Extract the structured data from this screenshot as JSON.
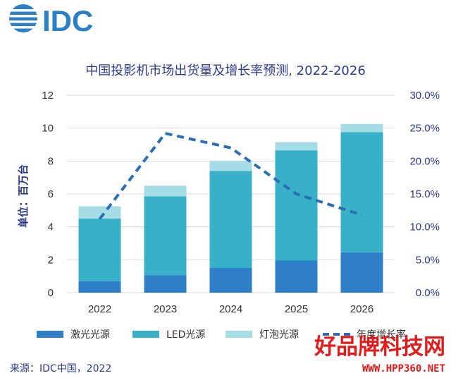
{
  "logo": {
    "text": "IDC"
  },
  "source": "来源：IDC中国，2022",
  "watermark": {
    "text": "好品牌科技网",
    "url": "WWW.HPP360.NET"
  },
  "colors": {
    "laser": "#2e7fc7",
    "led": "#38b1c8",
    "bulb": "#a6dce6",
    "growth": "#2a6fb5",
    "title": "#2b3a8f",
    "axis_text": "#333333",
    "right_axis_text": "#2b3a8f",
    "grid": "#d9d9d9",
    "watermark": "#e21a1a"
  },
  "chart_data": {
    "type": "bar",
    "stacked": true,
    "title": "中国投影机市场出货量及增长率预测, 2022-2026",
    "ylabel": "单位：百万台",
    "categories": [
      "2022",
      "2023",
      "2024",
      "2025",
      "2026"
    ],
    "ylim": [
      0,
      12
    ],
    "yticks": [
      "0",
      "2",
      "4",
      "6",
      "8",
      "10",
      "12"
    ],
    "y2lim": [
      0,
      30
    ],
    "y2ticks": [
      "0.0%",
      "5.0%",
      "10.0%",
      "15.0%",
      "20.0%",
      "25.0%",
      "30.0%"
    ],
    "series": [
      {
        "name": "激光光源",
        "kind": "bar",
        "colorKey": "laser",
        "values": [
          0.7,
          1.05,
          1.5,
          1.95,
          2.45
        ]
      },
      {
        "name": "LED光源",
        "kind": "bar",
        "colorKey": "led",
        "values": [
          3.8,
          4.8,
          5.9,
          6.7,
          7.3
        ]
      },
      {
        "name": "灯泡光源",
        "kind": "bar",
        "colorKey": "bulb",
        "values": [
          0.75,
          0.65,
          0.6,
          0.5,
          0.5
        ]
      },
      {
        "name": "年度增长率",
        "kind": "line",
        "axis": "right",
        "colorKey": "growth",
        "dashed": true,
        "values": [
          11.2,
          24.2,
          22.0,
          15.0,
          11.8
        ]
      }
    ],
    "grid": true,
    "legend_position": "bottom"
  }
}
